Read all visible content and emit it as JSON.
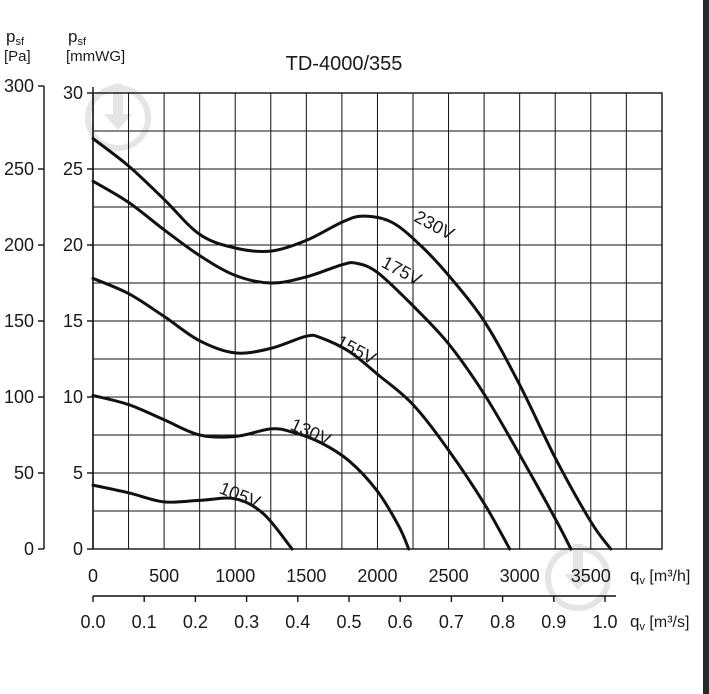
{
  "chart_data": {
    "type": "line",
    "title": "TD-4000/355",
    "y_axes": [
      {
        "label_main": "p",
        "label_sub": "sf",
        "unit": "[Pa]",
        "ticks": [
          0,
          50,
          100,
          150,
          200,
          250,
          300
        ]
      },
      {
        "label_main": "p",
        "label_sub": "sf",
        "unit": "[mmWG]",
        "ticks": [
          0,
          5,
          10,
          15,
          20,
          25,
          30
        ]
      }
    ],
    "x_axes": [
      {
        "label_main": "q",
        "label_sub": "v",
        "unit": "[m³/h]",
        "ticks": [
          "0",
          "500",
          "1000",
          "1500",
          "2000",
          "2500",
          "3000",
          "3500"
        ]
      },
      {
        "label_main": "q",
        "label_sub": "v",
        "unit": "[m³/s]",
        "ticks": [
          "0.0",
          "0.1",
          "0.2",
          "0.3",
          "0.4",
          "0.5",
          "0.6",
          "0.7",
          "0.8",
          "0.9",
          "1.0"
        ]
      }
    ],
    "xlim": [
      0,
      4000
    ],
    "ylim": [
      0,
      300
    ],
    "grid": true,
    "line_color": "#111111",
    "series": [
      {
        "name": "230V",
        "points": [
          [
            0,
            270
          ],
          [
            250,
            252
          ],
          [
            500,
            230
          ],
          [
            750,
            207
          ],
          [
            1000,
            198
          ],
          [
            1250,
            196
          ],
          [
            1500,
            203
          ],
          [
            1750,
            215
          ],
          [
            1900,
            219
          ],
          [
            2100,
            215
          ],
          [
            2300,
            200
          ],
          [
            2500,
            180
          ],
          [
            2750,
            150
          ],
          [
            3000,
            108
          ],
          [
            3250,
            60
          ],
          [
            3500,
            18
          ],
          [
            3640,
            0
          ]
        ]
      },
      {
        "name": "175V",
        "points": [
          [
            0,
            242
          ],
          [
            250,
            228
          ],
          [
            500,
            210
          ],
          [
            750,
            193
          ],
          [
            1000,
            180
          ],
          [
            1250,
            175
          ],
          [
            1500,
            179
          ],
          [
            1750,
            187
          ],
          [
            1850,
            188
          ],
          [
            2000,
            182
          ],
          [
            2250,
            160
          ],
          [
            2500,
            135
          ],
          [
            2750,
            102
          ],
          [
            3000,
            62
          ],
          [
            3250,
            20
          ],
          [
            3360,
            0
          ]
        ]
      },
      {
        "name": "155V",
        "points": [
          [
            0,
            178
          ],
          [
            250,
            168
          ],
          [
            500,
            153
          ],
          [
            750,
            137
          ],
          [
            1000,
            129
          ],
          [
            1250,
            132
          ],
          [
            1500,
            140
          ],
          [
            1600,
            139
          ],
          [
            1800,
            130
          ],
          [
            2000,
            115
          ],
          [
            2250,
            95
          ],
          [
            2500,
            65
          ],
          [
            2750,
            30
          ],
          [
            2930,
            0
          ]
        ]
      },
      {
        "name": "130V",
        "points": [
          [
            0,
            101
          ],
          [
            250,
            95
          ],
          [
            500,
            85
          ],
          [
            750,
            75
          ],
          [
            1000,
            74
          ],
          [
            1250,
            79
          ],
          [
            1400,
            77
          ],
          [
            1600,
            70
          ],
          [
            1800,
            58
          ],
          [
            2000,
            38
          ],
          [
            2150,
            15
          ],
          [
            2220,
            0
          ]
        ]
      },
      {
        "name": "105V",
        "points": [
          [
            0,
            42
          ],
          [
            250,
            37
          ],
          [
            500,
            31
          ],
          [
            750,
            32
          ],
          [
            1000,
            33
          ],
          [
            1200,
            23
          ],
          [
            1400,
            0
          ]
        ]
      }
    ],
    "series_labels": [
      {
        "name": "230V",
        "anchor": [
          2250,
          216
        ],
        "angle": 28
      },
      {
        "name": "175V",
        "anchor": [
          2020,
          186
        ],
        "angle": 28
      },
      {
        "name": "155V",
        "anchor": [
          1700,
          134
        ],
        "angle": 28
      },
      {
        "name": "130V",
        "anchor": [
          1380,
          79
        ],
        "angle": 24
      },
      {
        "name": "105V",
        "anchor": [
          880,
          37
        ],
        "angle": 22
      }
    ]
  }
}
